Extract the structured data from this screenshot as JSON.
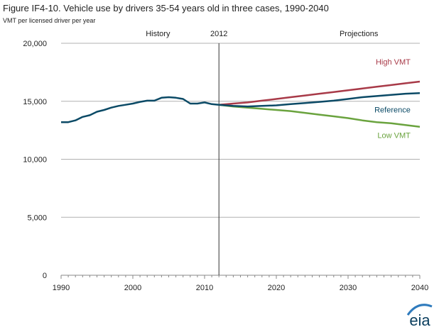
{
  "chart_data": {
    "type": "line",
    "title": "Figure IF4-10. Vehicle use by drivers 35-54 years old in three cases, 1990-2040",
    "subtitle": "VMT per licensed driver  per year",
    "xlim": [
      1990,
      2040
    ],
    "ylim": [
      0,
      20000
    ],
    "x_ticks": [
      "1990",
      "2000",
      "2010",
      "2020",
      "2030",
      "2040"
    ],
    "y_ticks": [
      "0",
      "5,000",
      "10,000",
      "15,000",
      "20,000"
    ],
    "grid": "horizontal",
    "annotations": {
      "history": "History",
      "divider": "2012",
      "projections": "Projections"
    },
    "divider_x": 2012,
    "colors": {
      "history": "#0b4a66",
      "high": "#a83a48",
      "reference": "#0b4a66",
      "low": "#6aa33e",
      "axis": "#888888",
      "grid": "#b0b0b0"
    },
    "series": [
      {
        "name": "History",
        "x": [
          1990,
          1991,
          1992,
          1993,
          1994,
          1995,
          1996,
          1997,
          1998,
          1999,
          2000,
          2001,
          2002,
          2003,
          2004,
          2005,
          2006,
          2007,
          2008,
          2009,
          2010,
          2011,
          2012
        ],
        "values": [
          13200,
          13200,
          13350,
          13650,
          13800,
          14100,
          14250,
          14450,
          14600,
          14700,
          14800,
          14950,
          15050,
          15050,
          15300,
          15350,
          15300,
          15200,
          14800,
          14800,
          14900,
          14750,
          14700
        ]
      },
      {
        "name": "High VMT",
        "x": [
          2012,
          2014,
          2016,
          2018,
          2020,
          2022,
          2024,
          2026,
          2028,
          2030,
          2032,
          2034,
          2036,
          2038,
          2040
        ],
        "values": [
          14700,
          14800,
          14900,
          15050,
          15200,
          15350,
          15500,
          15650,
          15800,
          15950,
          16100,
          16250,
          16400,
          16550,
          16700
        ]
      },
      {
        "name": "Reference",
        "x": [
          2012,
          2014,
          2016,
          2018,
          2020,
          2022,
          2024,
          2026,
          2028,
          2030,
          2032,
          2034,
          2036,
          2038,
          2040
        ],
        "values": [
          14700,
          14600,
          14550,
          14600,
          14650,
          14750,
          14850,
          14950,
          15050,
          15200,
          15350,
          15450,
          15550,
          15650,
          15700
        ]
      },
      {
        "name": "Low VMT",
        "x": [
          2012,
          2014,
          2016,
          2018,
          2020,
          2022,
          2024,
          2026,
          2028,
          2030,
          2032,
          2034,
          2036,
          2038,
          2040
        ],
        "values": [
          14700,
          14550,
          14450,
          14350,
          14250,
          14150,
          14000,
          13850,
          13700,
          13550,
          13350,
          13200,
          13100,
          12950,
          12800
        ]
      }
    ]
  },
  "logo": {
    "text": "eia"
  }
}
